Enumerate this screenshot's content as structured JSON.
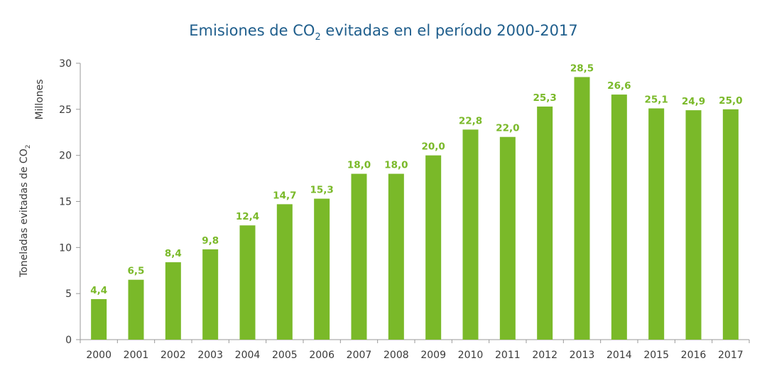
{
  "chart_data": {
    "type": "bar",
    "title": {
      "main": "Emisiones de CO",
      "sub": "2",
      "rest": " evitadas en el período 2000-2017"
    },
    "ylabel": {
      "main": "Toneladas evitadas de CO",
      "sub": "2"
    },
    "yunit": "Millones",
    "xlabel": "",
    "categories": [
      "2000",
      "2001",
      "2002",
      "2003",
      "2004",
      "2005",
      "2006",
      "2007",
      "2008",
      "2009",
      "2010",
      "2011",
      "2012",
      "2013",
      "2014",
      "2015",
      "2016",
      "2017"
    ],
    "values": [
      4.4,
      6.5,
      8.4,
      9.8,
      12.4,
      14.7,
      15.3,
      18.0,
      18.0,
      20.0,
      22.8,
      22.0,
      25.3,
      28.5,
      26.6,
      25.1,
      24.9,
      25.0
    ],
    "data_labels": [
      "4,4",
      "6,5",
      "8,4",
      "9,8",
      "12,4",
      "14,7",
      "15,3",
      "18,0",
      "18,0",
      "20,0",
      "22,8",
      "22,0",
      "25,3",
      "28,5",
      "26,6",
      "25,1",
      "24,9",
      "25,0"
    ],
    "yticks": [
      "0",
      "5",
      "10",
      "15",
      "20",
      "25",
      "30"
    ],
    "ylim": [
      0,
      30
    ],
    "grid": false,
    "legend": "none",
    "colors": {
      "bar": "#7ab929",
      "title": "#1f5e8c",
      "axis": "#9a9a9a"
    }
  }
}
